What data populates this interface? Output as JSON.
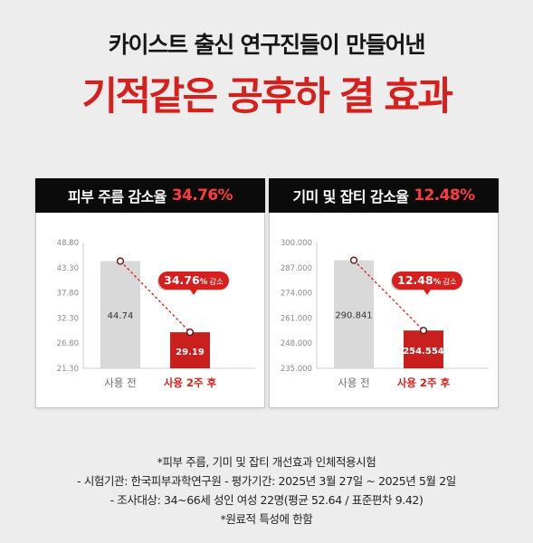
{
  "header": {
    "subtitle": "카이스트 출신 연구진들이 만들어낸",
    "title": "기적같은 공후하 결 효과"
  },
  "colors": {
    "accent": "#d6201e",
    "bar_before": "#d9d9d9",
    "bar_after": "#c91f1f"
  },
  "chart_data": [
    {
      "type": "bar",
      "title_prefix": "피부 주름 감소율",
      "title_value": "34.76%",
      "categories": [
        "사용 전",
        "사용 2주 후"
      ],
      "values": [
        44.74,
        29.19
      ],
      "value_labels": [
        "44.74",
        "29.19"
      ],
      "yticks": [
        "48.80",
        "43.30",
        "37.80",
        "32.30",
        "26.80",
        "21.30"
      ],
      "ylim": [
        21.3,
        48.8
      ],
      "annotation": {
        "value": "34.76",
        "unit": "%",
        "suffix": "감소"
      }
    },
    {
      "type": "bar",
      "title_prefix": "기미 및 잡티 감소율",
      "title_value": "12.48%",
      "categories": [
        "사용 전",
        "사용 2주 후"
      ],
      "values": [
        290.841,
        254.554
      ],
      "value_labels": [
        "290.841",
        "254.554"
      ],
      "yticks": [
        "300.000",
        "287.000",
        "274.000",
        "261.000",
        "248.000",
        "235.000"
      ],
      "ylim": [
        235,
        300
      ],
      "annotation": {
        "value": "12.48",
        "unit": "%",
        "suffix": "감소"
      }
    }
  ],
  "footnotes": [
    "*피부 주름, 기미 및 잡티 개선효과 인체적용시험",
    "- 시험기관: 한국피부과학연구원  - 평가기간: 2025년 3월 27일 ~ 2025년 5월 2일",
    "- 조사대상: 34~66세 성인 여성 22명(평균 52.64 / 표준편차 9.42)",
    "*원료적 특성에 한함"
  ]
}
